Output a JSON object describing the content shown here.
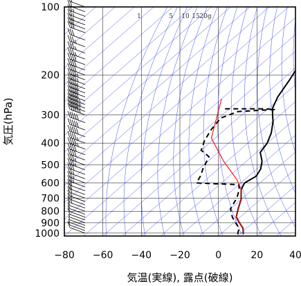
{
  "chart_data": {
    "type": "line",
    "title": "",
    "xlabel": "気温(実線), 露点(破線)",
    "ylabel": "気圧(hPa)",
    "xlim": [
      -80,
      40
    ],
    "ylim": [
      1030,
      100
    ],
    "y_scale": "log",
    "grid": true,
    "x_ticks": [
      -80,
      -60,
      -40,
      -20,
      0,
      20,
      40
    ],
    "x_tick_labels": [
      "−80",
      "−60",
      "−40",
      "−20",
      "0",
      "20",
      "40"
    ],
    "y_ticks": [
      100,
      200,
      300,
      400,
      500,
      600,
      700,
      800,
      900,
      1000
    ],
    "y_tick_labels": [
      "100",
      "200",
      "300",
      "400",
      "500",
      "600",
      "700",
      "800",
      "900",
      "1000"
    ],
    "mixing_ratio_labels": [
      "1",
      "5",
      "10",
      "15",
      "20g"
    ],
    "series": [
      {
        "style": "solid",
        "color": "#000000",
        "points": [
          [
            12,
            1013
          ],
          [
            8,
            950
          ],
          [
            3,
            900
          ],
          [
            -2,
            850
          ],
          [
            -6,
            780
          ],
          [
            -10,
            710
          ],
          [
            -16,
            640
          ],
          [
            -18,
            600
          ],
          [
            -16,
            560
          ],
          [
            -18,
            520
          ],
          [
            -22,
            480
          ],
          [
            -28,
            440
          ],
          [
            -30,
            400
          ],
          [
            -34,
            360
          ],
          [
            -40,
            320
          ],
          [
            -44,
            300
          ],
          [
            -48,
            280
          ],
          [
            -52,
            250
          ],
          [
            -56,
            210
          ],
          [
            -60,
            180
          ],
          [
            -64,
            150
          ],
          [
            -66,
            130
          ],
          [
            -67,
            112
          ],
          [
            -65,
            102
          ],
          [
            -68,
            100
          ]
        ]
      },
      {
        "style": "dashed",
        "color": "#000000",
        "points": [
          [
            9,
            1013
          ],
          [
            6,
            950
          ],
          [
            1,
            900
          ],
          [
            -4,
            850
          ],
          [
            -10,
            780
          ],
          [
            -13,
            700
          ],
          [
            -17,
            640
          ],
          [
            -20,
            610
          ],
          [
            -33,
            605
          ],
          [
            -43,
            600
          ],
          [
            -45,
            560
          ],
          [
            -48,
            520
          ],
          [
            -52,
            460
          ],
          [
            -60,
            430
          ],
          [
            -64,
            390
          ],
          [
            -67,
            350
          ],
          [
            -69,
            310
          ],
          [
            -64,
            290
          ],
          [
            -46,
            284
          ],
          [
            -53,
            282
          ],
          [
            -73,
            282
          ]
        ]
      },
      {
        "style": "solid",
        "color": "#ff0000",
        "points": [
          [
            12,
            1013
          ],
          [
            8,
            950
          ],
          [
            3,
            900
          ],
          [
            -2,
            850
          ],
          [
            -6,
            780
          ],
          [
            -10,
            710
          ],
          [
            -16,
            640
          ],
          [
            -24,
            580
          ],
          [
            -42,
            480
          ],
          [
            -62,
            380
          ],
          [
            -80,
            255
          ]
        ]
      }
    ],
    "wind_barbs": {
      "color": "#000000",
      "pressures": [
        1000,
        975,
        950,
        925,
        900,
        875,
        850,
        825,
        800,
        775,
        750,
        725,
        700,
        675,
        650,
        625,
        600,
        575,
        550,
        525,
        500,
        475,
        450,
        425,
        400,
        375,
        350,
        325,
        300,
        290,
        280,
        270,
        260,
        250,
        240,
        230,
        220,
        210,
        200,
        190,
        180,
        170,
        160,
        150,
        140,
        130,
        125,
        120,
        115,
        110,
        105,
        100
      ],
      "speeds_kt": [
        10,
        8,
        5,
        5,
        5,
        10,
        10,
        10,
        10,
        15,
        15,
        15,
        20,
        20,
        20,
        25,
        25,
        25,
        30,
        35,
        35,
        40,
        40,
        45,
        45,
        50,
        50,
        50,
        55,
        55,
        55,
        55,
        50,
        50,
        50,
        45,
        45,
        45,
        40,
        40,
        40,
        35,
        35,
        35,
        30,
        30,
        30,
        25,
        25,
        25,
        20,
        20
      ]
    }
  }
}
